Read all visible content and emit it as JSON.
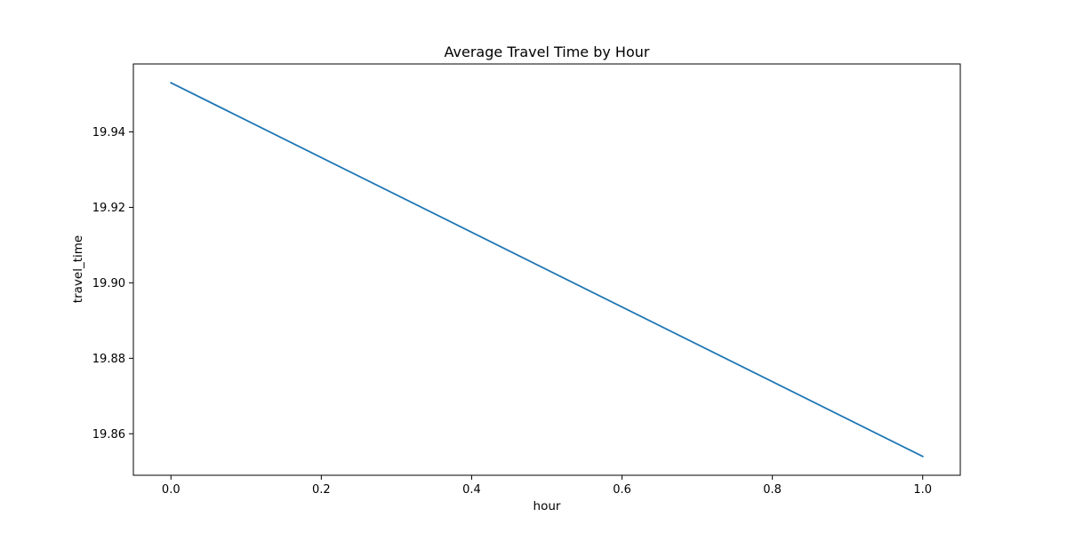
{
  "colors": {
    "series": "#1f77b4",
    "axes": "#000000",
    "background": "#ffffff"
  },
  "chart_data": {
    "type": "line",
    "title": "Average Travel Time by Hour",
    "xlabel": "hour",
    "ylabel": "travel_time",
    "xlim": [
      -0.05,
      1.05
    ],
    "ylim": [
      19.849,
      19.958
    ],
    "xticks": [
      0.0,
      0.2,
      0.4,
      0.6,
      0.8,
      1.0
    ],
    "xtick_labels": [
      "0.0",
      "0.2",
      "0.4",
      "0.6",
      "0.8",
      "1.0"
    ],
    "yticks": [
      19.86,
      19.88,
      19.9,
      19.92,
      19.94
    ],
    "ytick_labels": [
      "19.86",
      "19.88",
      "19.90",
      "19.92",
      "19.94"
    ],
    "grid": false,
    "legend": "none",
    "series": [
      {
        "x": [
          0,
          1
        ],
        "y": [
          19.953,
          19.854
        ]
      }
    ]
  }
}
